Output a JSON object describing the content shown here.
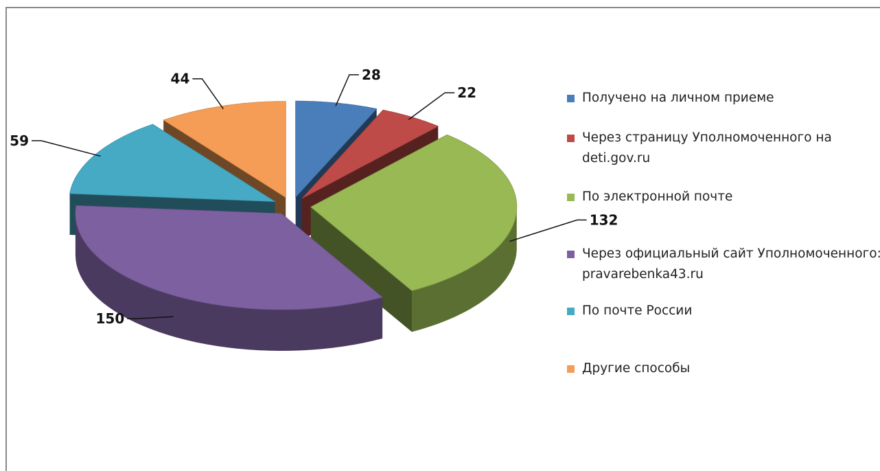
{
  "chart_data": {
    "type": "pie",
    "categories": [
      "Получено на личном приеме",
      "Через страницу Уполномоченного на deti.gov.ru",
      "По электронной почте",
      "Через официальный сайт Уполномоченного: pravarebenka43.ru",
      "По почте России",
      "Другие способы"
    ],
    "values": [
      28,
      22,
      132,
      150,
      59,
      44
    ],
    "colors": [
      "#4a7ebb",
      "#be4b48",
      "#98b954",
      "#7d60a0",
      "#46aac5",
      "#f59d56"
    ],
    "legend": "right"
  }
}
